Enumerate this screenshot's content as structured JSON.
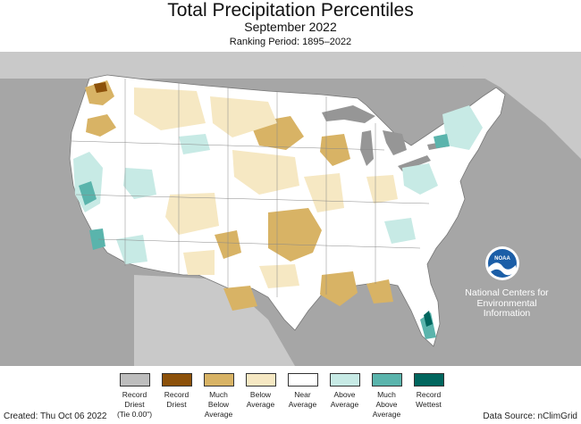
{
  "header": {
    "title": "Total Precipitation Percentiles",
    "subtitle": "September 2022",
    "ranking_period": "Ranking Period: 1895–2022"
  },
  "logo": {
    "icon": "noaa-logo-icon",
    "logo_text": "NOAA",
    "org_line1": "National Centers for",
    "org_line2": "Environmental",
    "org_line3": "Information"
  },
  "legend": {
    "items": [
      {
        "label": "Record\nDriest\n(Tie 0.00\")",
        "color": "#bdbdbd"
      },
      {
        "label": "Record\nDriest",
        "color": "#8c510a"
      },
      {
        "label": "Much\nBelow\nAverage",
        "color": "#d8b365"
      },
      {
        "label": "Below\nAverage",
        "color": "#f6e8c3"
      },
      {
        "label": "Near\nAverage",
        "color": "#ffffff"
      },
      {
        "label": "Above\nAverage",
        "color": "#c7eae5"
      },
      {
        "label": "Much\nAbove\nAverage",
        "color": "#5ab4ac"
      },
      {
        "label": "Record\nWettest",
        "color": "#01665e"
      }
    ]
  },
  "footer": {
    "created": "Created: Thu Oct 06 2022",
    "source": "Data Source: nClimGrid"
  },
  "colors": {
    "background_land": "#b8b8b8",
    "water": "#969696",
    "near_average": "#ffffff"
  }
}
